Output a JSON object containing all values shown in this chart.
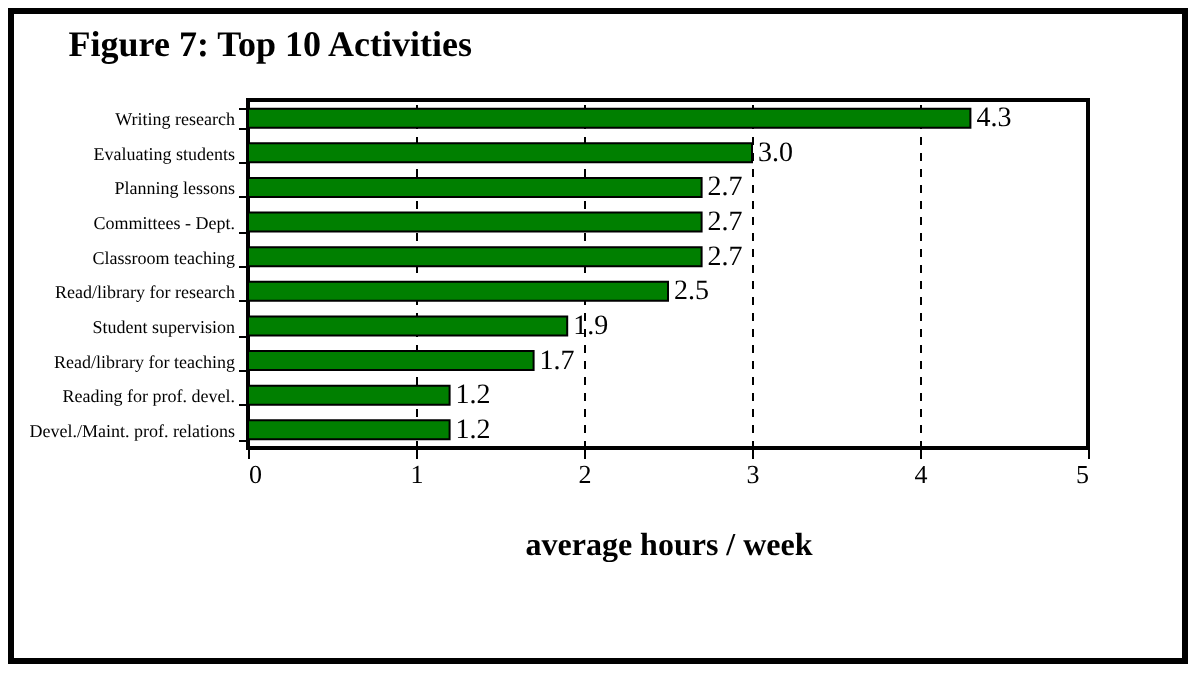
{
  "chart_data": {
    "type": "bar",
    "orientation": "horizontal",
    "title": "Figure 7:   Top 10 Activities",
    "xlabel": "average hours / week",
    "categories": [
      "Writing research",
      "Evaluating students",
      "Planning lessons",
      "Committees - Dept.",
      "Classroom teaching",
      "Read/library for research",
      "Student supervision",
      "Read/library for teaching",
      "Reading for prof. devel.",
      "Devel./Maint. prof. relations"
    ],
    "values": [
      4.3,
      3.0,
      2.7,
      2.7,
      2.7,
      2.5,
      1.9,
      1.7,
      1.2,
      1.2
    ],
    "value_labels": [
      "4.3",
      "3.0",
      "2.7",
      "2.7",
      "2.7",
      "2.5",
      "1.9",
      "1.7",
      "1.2",
      "1.2"
    ],
    "color": "#007f00",
    "xlim": [
      0,
      5
    ],
    "xticks": [
      0,
      1,
      2,
      3,
      4,
      5
    ],
    "grid": "x"
  }
}
